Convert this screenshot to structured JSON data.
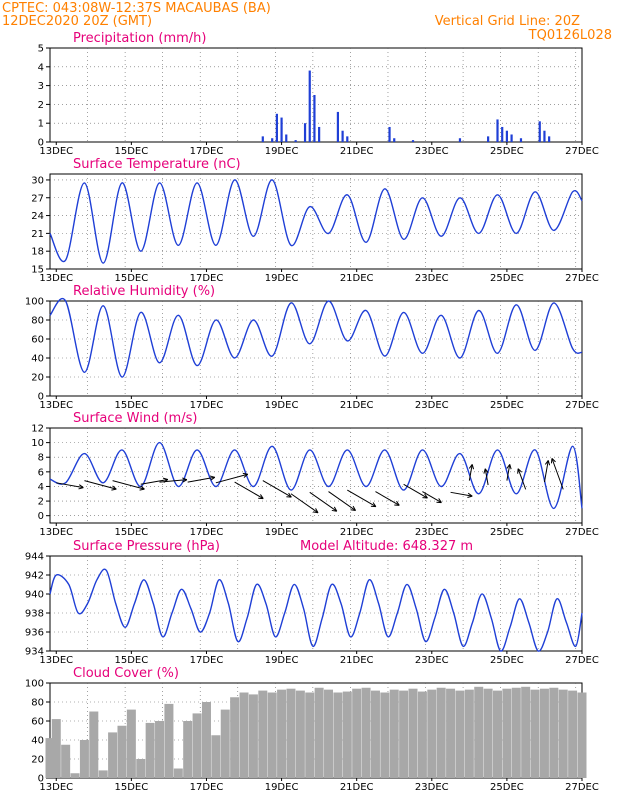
{
  "header": {
    "line1": "CPTEC:   043:08W-12:37S   MACAUBAS (BA)",
    "line2": "12DEC2020 20Z (GMT)",
    "grid_note": "Vertical Grid Line: 20Z",
    "run_code": "TQ0126L028"
  },
  "colors": {
    "header": "#ff8000",
    "panel_title": "#e6007a",
    "series": "#1f3fd6",
    "cloud": "#a8a8a8",
    "wind_arrow": "#000000"
  },
  "x_axis": {
    "start": "2020-12-12T20:00Z",
    "end": "2020-12-27T00:00Z",
    "ticks": [
      "13DEC",
      "15DEC",
      "17DEC",
      "19DEC",
      "21DEC",
      "23DEC",
      "25DEC",
      "27DEC"
    ]
  },
  "chart_data": [
    {
      "id": "precip",
      "type": "bar",
      "title": "Precipitation (mm/h)",
      "ylim": [
        0,
        5
      ],
      "yticks": [
        "0",
        "1",
        "2",
        "3",
        "4",
        "5"
      ],
      "x": [
        "2020-12-18T12Z",
        "2020-12-18T18Z",
        "2020-12-18T21Z",
        "2020-12-19T00Z",
        "2020-12-19T03Z",
        "2020-12-19T09Z",
        "2020-12-19T15Z",
        "2020-12-19T18Z",
        "2020-12-19T21Z",
        "2020-12-20T00Z",
        "2020-12-20T12Z",
        "2020-12-20T15Z",
        "2020-12-20T18Z",
        "2020-12-21T21Z",
        "2020-12-22T00Z",
        "2020-12-22T12Z",
        "2020-12-23T18Z",
        "2020-12-24T12Z",
        "2020-12-24T18Z",
        "2020-12-24T21Z",
        "2020-12-25T00Z",
        "2020-12-25T03Z",
        "2020-12-25T09Z",
        "2020-12-25T21Z",
        "2020-12-26T00Z",
        "2020-12-26T03Z"
      ],
      "values": [
        0.3,
        0.2,
        1.5,
        1.3,
        0.4,
        0.1,
        1.0,
        3.8,
        2.5,
        0.8,
        1.6,
        0.6,
        0.3,
        0.8,
        0.2,
        0.1,
        0.2,
        0.3,
        1.2,
        0.8,
        0.6,
        0.4,
        0.2,
        1.1,
        0.6,
        0.3
      ]
    },
    {
      "id": "temp",
      "type": "line",
      "title": "Surface Temperature (nC)",
      "ylim": [
        15,
        31
      ],
      "yticks": [
        "15",
        "18",
        "21",
        "24",
        "27",
        "30"
      ],
      "x": [
        "2020-12-12T20Z",
        "2020-12-13T06Z",
        "2020-12-13T18Z",
        "2020-12-14T06Z",
        "2020-12-14T18Z",
        "2020-12-15T06Z",
        "2020-12-15T18Z",
        "2020-12-16T06Z",
        "2020-12-16T18Z",
        "2020-12-17T06Z",
        "2020-12-17T18Z",
        "2020-12-18T06Z",
        "2020-12-18T18Z",
        "2020-12-19T06Z",
        "2020-12-19T18Z",
        "2020-12-20T06Z",
        "2020-12-20T18Z",
        "2020-12-21T06Z",
        "2020-12-21T18Z",
        "2020-12-22T06Z",
        "2020-12-22T18Z",
        "2020-12-23T06Z",
        "2020-12-23T18Z",
        "2020-12-24T06Z",
        "2020-12-24T18Z",
        "2020-12-25T06Z",
        "2020-12-25T18Z",
        "2020-12-26T06Z",
        "2020-12-26T18Z",
        "2020-12-27T00Z"
      ],
      "values": [
        21,
        16.5,
        29.5,
        16,
        29.5,
        18,
        29.5,
        19,
        29.5,
        19,
        30,
        20.5,
        30,
        19,
        25.5,
        21,
        27.5,
        19.5,
        28.5,
        20,
        27,
        20.5,
        27,
        21,
        27.5,
        21,
        28,
        21.5,
        28,
        26.5
      ]
    },
    {
      "id": "rh",
      "type": "line",
      "title": "Relative Humidity (%)",
      "ylim": [
        0,
        100
      ],
      "yticks": [
        "0",
        "20",
        "40",
        "60",
        "80",
        "100"
      ],
      "x": [
        "2020-12-12T20Z",
        "2020-12-13T06Z",
        "2020-12-13T18Z",
        "2020-12-14T06Z",
        "2020-12-14T18Z",
        "2020-12-15T06Z",
        "2020-12-15T18Z",
        "2020-12-16T06Z",
        "2020-12-16T18Z",
        "2020-12-17T06Z",
        "2020-12-17T18Z",
        "2020-12-18T06Z",
        "2020-12-18T18Z",
        "2020-12-19T06Z",
        "2020-12-19T18Z",
        "2020-12-20T06Z",
        "2020-12-20T18Z",
        "2020-12-21T06Z",
        "2020-12-21T18Z",
        "2020-12-22T06Z",
        "2020-12-22T18Z",
        "2020-12-23T06Z",
        "2020-12-23T18Z",
        "2020-12-24T06Z",
        "2020-12-24T18Z",
        "2020-12-25T06Z",
        "2020-12-25T18Z",
        "2020-12-26T06Z",
        "2020-12-26T18Z",
        "2020-12-27T00Z"
      ],
      "values": [
        85,
        100,
        25,
        95,
        20,
        88,
        35,
        85,
        32,
        80,
        40,
        80,
        42,
        98,
        55,
        100,
        58,
        90,
        42,
        88,
        45,
        85,
        40,
        90,
        45,
        96,
        48,
        98,
        50,
        46
      ]
    },
    {
      "id": "wind",
      "type": "line",
      "title": "Surface Wind (m/s)",
      "ylim": [
        -1,
        12
      ],
      "yticks": [
        "0",
        "2",
        "4",
        "6",
        "8",
        "10",
        "12"
      ],
      "x": [
        "2020-12-12T20Z",
        "2020-12-13T06Z",
        "2020-12-13T18Z",
        "2020-12-14T06Z",
        "2020-12-14T18Z",
        "2020-12-15T06Z",
        "2020-12-15T18Z",
        "2020-12-16T06Z",
        "2020-12-16T18Z",
        "2020-12-17T06Z",
        "2020-12-17T18Z",
        "2020-12-18T06Z",
        "2020-12-18T18Z",
        "2020-12-19T06Z",
        "2020-12-19T18Z",
        "2020-12-20T06Z",
        "2020-12-20T18Z",
        "2020-12-21T06Z",
        "2020-12-21T18Z",
        "2020-12-22T06Z",
        "2020-12-22T18Z",
        "2020-12-23T06Z",
        "2020-12-23T18Z",
        "2020-12-24T06Z",
        "2020-12-24T18Z",
        "2020-12-25T06Z",
        "2020-12-25T18Z",
        "2020-12-26T06Z",
        "2020-12-26T18Z",
        "2020-12-27T00Z"
      ],
      "values": [
        5,
        4.5,
        8.5,
        4.5,
        9,
        4,
        10,
        4,
        9,
        4,
        9,
        4,
        9.5,
        3.5,
        9,
        4,
        9,
        4,
        9,
        3.5,
        9,
        4,
        8.5,
        3,
        9,
        3,
        9,
        1,
        9.5,
        1
      ],
      "arrows": {
        "x": [
          "2020-12-13T00Z",
          "2020-12-13T18Z",
          "2020-12-14T12Z",
          "2020-12-15T06Z",
          "2020-12-15T18Z",
          "2020-12-16T12Z",
          "2020-12-17T06Z",
          "2020-12-17T18Z",
          "2020-12-18T12Z",
          "2020-12-19T06Z",
          "2020-12-19T18Z",
          "2020-12-20T06Z",
          "2020-12-20T18Z",
          "2020-12-21T12Z",
          "2020-12-22T06Z",
          "2020-12-22T18Z",
          "2020-12-23T12Z",
          "2020-12-24T00Z",
          "2020-12-24T12Z",
          "2020-12-25T00Z",
          "2020-12-25T12Z",
          "2020-12-26T00Z",
          "2020-12-26T12Z"
        ],
        "y": [
          4.5,
          4.8,
          4.8,
          4.3,
          4.6,
          4.6,
          4.5,
          4.6,
          4.8,
          3.0,
          3.2,
          3.3,
          3.5,
          3.3,
          4.3,
          3.3,
          3.2,
          4.8,
          4.2,
          4.8,
          3.6,
          4.6,
          3.6
        ],
        "speed": [
          5,
          6,
          6,
          5,
          5,
          5,
          6,
          6,
          6,
          6,
          6,
          6,
          6,
          5,
          5,
          4,
          4,
          3,
          3,
          3,
          4,
          4,
          6
        ],
        "dir_deg": [
          80,
          75,
          75,
          100,
          95,
          100,
          105,
          60,
          60,
          55,
          55,
          55,
          60,
          60,
          60,
          60,
          80,
          170,
          190,
          170,
          200,
          170,
          200
        ]
      }
    },
    {
      "id": "pressure",
      "type": "line",
      "title": "Surface Pressure (hPa)",
      "annotation": "Model Altitude: 648.327 m",
      "ylim": [
        934,
        944
      ],
      "yticks": [
        "934",
        "936",
        "938",
        "940",
        "942",
        "944"
      ],
      "x": [
        "2020-12-12T20Z",
        "2020-12-13T00Z",
        "2020-12-13T08Z",
        "2020-12-13T14Z",
        "2020-12-13T20Z",
        "2020-12-14T02Z",
        "2020-12-14T08Z",
        "2020-12-14T14Z",
        "2020-12-14T20Z",
        "2020-12-15T02Z",
        "2020-12-15T08Z",
        "2020-12-15T14Z",
        "2020-12-15T20Z",
        "2020-12-16T02Z",
        "2020-12-16T08Z",
        "2020-12-16T14Z",
        "2020-12-16T20Z",
        "2020-12-17T02Z",
        "2020-12-17T08Z",
        "2020-12-17T14Z",
        "2020-12-17T20Z",
        "2020-12-18T02Z",
        "2020-12-18T08Z",
        "2020-12-18T14Z",
        "2020-12-18T20Z",
        "2020-12-19T02Z",
        "2020-12-19T08Z",
        "2020-12-19T14Z",
        "2020-12-19T20Z",
        "2020-12-20T02Z",
        "2020-12-20T08Z",
        "2020-12-20T14Z",
        "2020-12-20T20Z",
        "2020-12-21T02Z",
        "2020-12-21T08Z",
        "2020-12-21T14Z",
        "2020-12-21T20Z",
        "2020-12-22T02Z",
        "2020-12-22T08Z",
        "2020-12-22T14Z",
        "2020-12-22T20Z",
        "2020-12-23T02Z",
        "2020-12-23T08Z",
        "2020-12-23T14Z",
        "2020-12-23T20Z",
        "2020-12-24T02Z",
        "2020-12-24T08Z",
        "2020-12-24T14Z",
        "2020-12-24T20Z",
        "2020-12-25T02Z",
        "2020-12-25T08Z",
        "2020-12-25T14Z",
        "2020-12-25T20Z",
        "2020-12-26T02Z",
        "2020-12-26T08Z",
        "2020-12-26T14Z",
        "2020-12-26T20Z",
        "2020-12-27T00Z"
      ],
      "values": [
        940,
        942,
        941,
        938,
        939,
        941.5,
        942.5,
        939,
        936.5,
        939,
        941.5,
        939,
        935.5,
        938,
        940.5,
        938.5,
        936,
        938,
        941.5,
        939,
        935,
        937.5,
        941,
        939,
        935.5,
        938,
        941,
        938.5,
        934.5,
        937.5,
        941,
        939,
        935.5,
        938,
        941.5,
        939,
        935.5,
        938,
        941,
        938.5,
        935,
        937.5,
        940.5,
        938,
        934.5,
        937,
        940,
        937.5,
        934,
        936.5,
        939.5,
        937,
        934,
        936,
        939.5,
        937,
        934.5,
        938
      ]
    },
    {
      "id": "cloud",
      "type": "bar",
      "title": "Cloud Cover (%)",
      "ylim": [
        0,
        100
      ],
      "yticks": [
        "0",
        "20",
        "40",
        "60",
        "80",
        "100"
      ],
      "x": [
        "2020-12-12T20Z",
        "2020-12-13T00Z",
        "2020-12-13T06Z",
        "2020-12-13T12Z",
        "2020-12-13T18Z",
        "2020-12-14T00Z",
        "2020-12-14T06Z",
        "2020-12-14T12Z",
        "2020-12-14T18Z",
        "2020-12-15T00Z",
        "2020-12-15T06Z",
        "2020-12-15T12Z",
        "2020-12-15T18Z",
        "2020-12-16T00Z",
        "2020-12-16T06Z",
        "2020-12-16T12Z",
        "2020-12-16T18Z",
        "2020-12-17T00Z",
        "2020-12-17T06Z",
        "2020-12-17T12Z",
        "2020-12-17T18Z",
        "2020-12-18T00Z",
        "2020-12-18T06Z",
        "2020-12-18T12Z",
        "2020-12-18T18Z",
        "2020-12-19T00Z",
        "2020-12-19T06Z",
        "2020-12-19T12Z",
        "2020-12-19T18Z",
        "2020-12-20T00Z",
        "2020-12-20T06Z",
        "2020-12-20T12Z",
        "2020-12-20T18Z",
        "2020-12-21T00Z",
        "2020-12-21T06Z",
        "2020-12-21T12Z",
        "2020-12-21T18Z",
        "2020-12-22T00Z",
        "2020-12-22T06Z",
        "2020-12-22T12Z",
        "2020-12-22T18Z",
        "2020-12-23T00Z",
        "2020-12-23T06Z",
        "2020-12-23T12Z",
        "2020-12-23T18Z",
        "2020-12-24T00Z",
        "2020-12-24T06Z",
        "2020-12-24T12Z",
        "2020-12-24T18Z",
        "2020-12-25T00Z",
        "2020-12-25T06Z",
        "2020-12-25T12Z",
        "2020-12-25T18Z",
        "2020-12-26T00Z",
        "2020-12-26T06Z",
        "2020-12-26T12Z",
        "2020-12-26T18Z",
        "2020-12-27T00Z"
      ],
      "values": [
        42,
        62,
        35,
        5,
        40,
        70,
        8,
        48,
        55,
        72,
        20,
        58,
        60,
        78,
        10,
        60,
        68,
        80,
        45,
        72,
        85,
        90,
        88,
        92,
        90,
        93,
        94,
        92,
        90,
        95,
        93,
        90,
        91,
        94,
        95,
        92,
        90,
        93,
        92,
        94,
        91,
        93,
        95,
        94,
        92,
        93,
        96,
        94,
        92,
        94,
        95,
        96,
        93,
        94,
        95,
        93,
        92,
        90
      ]
    }
  ]
}
